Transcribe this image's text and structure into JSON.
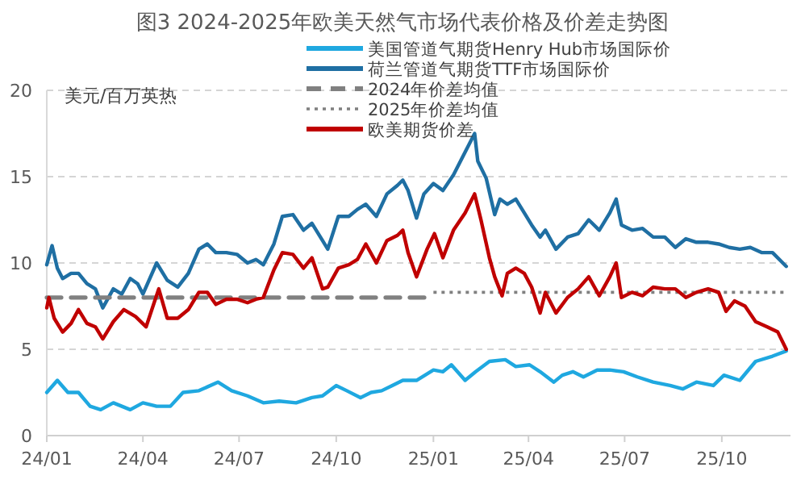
{
  "chart_data": {
    "type": "line",
    "title": "图3  2024-2025年欧美天然气市场代表价格及价差走势图",
    "ylabel": "美元/百万英热",
    "xlim": [
      "2024-01-01",
      "2025-12-05"
    ],
    "xticks": [
      {
        "value": "2024-01-01",
        "label": "24/01"
      },
      {
        "value": "2024-04-01",
        "label": "24/04"
      },
      {
        "value": "2024-07-01",
        "label": "24/07"
      },
      {
        "value": "2024-10-01",
        "label": "24/10"
      },
      {
        "value": "2025-01-01",
        "label": "25/01"
      },
      {
        "value": "2025-04-01",
        "label": "25/04"
      },
      {
        "value": "2025-07-01",
        "label": "25/07"
      },
      {
        "value": "2025-10-01",
        "label": "25/10"
      }
    ],
    "ylim": [
      0,
      20
    ],
    "yticks": [
      0,
      5,
      10,
      15,
      20
    ],
    "grid": "y",
    "legend": "top",
    "series": [
      {
        "name": "美国管道气期货Henry Hub市场国际价",
        "color": "#1fa8e0",
        "line_style": "solid",
        "x": [
          "2024-01-01",
          "2024-01-11",
          "2024-01-21",
          "2024-01-31",
          "2024-02-11",
          "2024-02-21",
          "2024-03-04",
          "2024-03-20",
          "2024-04-01",
          "2024-04-14",
          "2024-04-27",
          "2024-05-09",
          "2024-05-24",
          "2024-06-11",
          "2024-06-24",
          "2024-07-09",
          "2024-07-24",
          "2024-08-08",
          "2024-08-24",
          "2024-09-08",
          "2024-09-18",
          "2024-10-01",
          "2024-10-11",
          "2024-10-24",
          "2024-11-03",
          "2024-11-13",
          "2024-11-23",
          "2024-12-03",
          "2024-12-16",
          "2025-01-01",
          "2025-01-10",
          "2025-01-18",
          "2025-01-31",
          "2025-02-10",
          "2025-02-23",
          "2025-03-10",
          "2025-03-20",
          "2025-04-02",
          "2025-04-12",
          "2025-04-25",
          "2025-05-03",
          "2025-05-13",
          "2025-05-23",
          "2025-06-05",
          "2025-06-17",
          "2025-06-30",
          "2025-07-13",
          "2025-07-28",
          "2025-08-13",
          "2025-08-25",
          "2025-09-07",
          "2025-09-23",
          "2025-10-03",
          "2025-10-18",
          "2025-11-02",
          "2025-11-18",
          "2025-12-01"
        ],
        "values": [
          2.5,
          3.2,
          2.5,
          2.5,
          1.7,
          1.5,
          1.9,
          1.5,
          1.9,
          1.7,
          1.7,
          2.5,
          2.6,
          3.1,
          2.6,
          2.3,
          1.9,
          2.0,
          1.9,
          2.2,
          2.3,
          2.9,
          2.6,
          2.2,
          2.5,
          2.6,
          2.9,
          3.2,
          3.2,
          3.8,
          3.7,
          4.1,
          3.2,
          3.7,
          4.3,
          4.4,
          4.0,
          4.1,
          3.7,
          3.1,
          3.5,
          3.7,
          3.4,
          3.8,
          3.8,
          3.7,
          3.4,
          3.1,
          2.9,
          2.7,
          3.1,
          2.9,
          3.5,
          3.2,
          4.3,
          4.6,
          4.9
        ]
      },
      {
        "name": "荷兰管道气期货TTF市场国际价",
        "color": "#1f6fa3",
        "line_style": "solid",
        "x": [
          "2024-01-01",
          "2024-01-06",
          "2024-01-11",
          "2024-01-16",
          "2024-01-24",
          "2024-01-31",
          "2024-02-08",
          "2024-02-16",
          "2024-02-23",
          "2024-03-04",
          "2024-03-12",
          "2024-03-20",
          "2024-03-27",
          "2024-04-01",
          "2024-04-14",
          "2024-04-24",
          "2024-05-04",
          "2024-05-14",
          "2024-05-24",
          "2024-06-01",
          "2024-06-09",
          "2024-06-19",
          "2024-06-29",
          "2024-07-09",
          "2024-07-17",
          "2024-07-24",
          "2024-08-03",
          "2024-08-11",
          "2024-08-21",
          "2024-08-31",
          "2024-09-08",
          "2024-09-18",
          "2024-09-23",
          "2024-10-03",
          "2024-10-13",
          "2024-10-21",
          "2024-10-29",
          "2024-11-08",
          "2024-11-18",
          "2024-11-28",
          "2024-12-03",
          "2024-12-08",
          "2024-12-16",
          "2024-12-23",
          "2025-01-01",
          "2025-01-10",
          "2025-01-20",
          "2025-02-09",
          "2025-02-12",
          "2025-02-20",
          "2025-02-28",
          "2025-03-05",
          "2025-03-12",
          "2025-03-20",
          "2025-03-28",
          "2025-04-04",
          "2025-04-12",
          "2025-04-17",
          "2025-04-27",
          "2025-05-08",
          "2025-05-18",
          "2025-05-28",
          "2025-06-07",
          "2025-06-17",
          "2025-06-23",
          "2025-06-28",
          "2025-07-08",
          "2025-07-18",
          "2025-07-28",
          "2025-08-08",
          "2025-08-18",
          "2025-08-28",
          "2025-09-07",
          "2025-09-18",
          "2025-09-28",
          "2025-10-08",
          "2025-10-18",
          "2025-10-28",
          "2025-11-08",
          "2025-11-18",
          "2025-12-01"
        ],
        "values": [
          9.9,
          11.0,
          9.7,
          9.1,
          9.4,
          9.4,
          8.8,
          8.5,
          7.4,
          8.5,
          8.2,
          9.1,
          8.8,
          8.2,
          10.0,
          9.0,
          8.6,
          9.4,
          10.8,
          11.1,
          10.6,
          10.6,
          10.5,
          10.0,
          10.2,
          9.9,
          11.1,
          12.7,
          12.8,
          11.9,
          12.3,
          11.3,
          10.8,
          12.7,
          12.7,
          13.1,
          13.4,
          12.7,
          14.0,
          14.5,
          14.8,
          14.2,
          12.6,
          14.0,
          14.6,
          14.2,
          15.1,
          17.5,
          15.9,
          14.9,
          12.8,
          13.7,
          13.4,
          13.7,
          12.9,
          12.2,
          11.5,
          11.9,
          10.8,
          11.5,
          11.7,
          12.5,
          11.9,
          12.9,
          13.7,
          12.2,
          11.9,
          12.0,
          11.5,
          11.5,
          10.9,
          11.4,
          11.2,
          11.2,
          11.1,
          10.9,
          10.8,
          10.9,
          10.6,
          10.6,
          9.8
        ]
      },
      {
        "name": "2024年价差均值",
        "color": "#808080",
        "line_style": "dashed",
        "x": [
          "2024-01-01",
          "2025-01-01"
        ],
        "values": [
          8.0,
          8.0
        ]
      },
      {
        "name": "2025年价差均值",
        "color": "#808080",
        "line_style": "dotted",
        "x": [
          "2025-01-01",
          "2025-12-01"
        ],
        "values": [
          8.3,
          8.3
        ]
      },
      {
        "name": "欧美期货价差",
        "color": "#c00000",
        "line_style": "solid",
        "x": [
          "2024-01-01",
          "2024-01-03",
          "2024-01-08",
          "2024-01-16",
          "2024-01-24",
          "2024-01-31",
          "2024-02-08",
          "2024-02-16",
          "2024-02-23",
          "2024-03-04",
          "2024-03-14",
          "2024-03-25",
          "2024-04-04",
          "2024-04-16",
          "2024-04-24",
          "2024-05-04",
          "2024-05-14",
          "2024-05-24",
          "2024-06-01",
          "2024-06-09",
          "2024-06-19",
          "2024-06-29",
          "2024-07-09",
          "2024-07-17",
          "2024-07-24",
          "2024-08-03",
          "2024-08-11",
          "2024-08-21",
          "2024-08-31",
          "2024-09-08",
          "2024-09-18",
          "2024-09-23",
          "2024-10-03",
          "2024-10-13",
          "2024-10-21",
          "2024-10-29",
          "2024-11-08",
          "2024-11-18",
          "2024-11-28",
          "2024-12-03",
          "2024-12-08",
          "2024-12-16",
          "2024-12-26",
          "2025-01-02",
          "2025-01-10",
          "2025-01-20",
          "2025-01-31",
          "2025-02-09",
          "2025-02-15",
          "2025-02-23",
          "2025-02-28",
          "2025-03-07",
          "2025-03-12",
          "2025-03-20",
          "2025-03-28",
          "2025-04-04",
          "2025-04-12",
          "2025-04-17",
          "2025-04-27",
          "2025-05-08",
          "2025-05-18",
          "2025-05-28",
          "2025-06-07",
          "2025-06-17",
          "2025-06-23",
          "2025-06-28",
          "2025-07-08",
          "2025-07-18",
          "2025-07-28",
          "2025-08-08",
          "2025-08-18",
          "2025-08-28",
          "2025-09-07",
          "2025-09-18",
          "2025-09-28",
          "2025-10-05",
          "2025-10-13",
          "2025-10-23",
          "2025-11-02",
          "2025-11-13",
          "2025-11-23",
          "2025-12-01"
        ],
        "values": [
          7.4,
          8.0,
          6.8,
          6.0,
          6.5,
          7.3,
          6.5,
          6.3,
          5.6,
          6.6,
          7.3,
          6.9,
          6.3,
          8.5,
          6.8,
          6.8,
          7.3,
          8.3,
          8.3,
          7.6,
          7.9,
          7.9,
          7.7,
          7.9,
          8.0,
          9.6,
          10.6,
          10.5,
          9.7,
          10.3,
          8.5,
          8.6,
          9.7,
          9.9,
          10.2,
          11.1,
          10.0,
          11.3,
          11.6,
          11.9,
          10.6,
          9.2,
          10.8,
          11.7,
          10.3,
          11.9,
          12.9,
          14.0,
          12.5,
          10.3,
          9.2,
          8.1,
          9.4,
          9.7,
          9.4,
          8.6,
          7.1,
          8.3,
          7.1,
          8.0,
          8.5,
          9.2,
          8.1,
          9.2,
          10.0,
          8.0,
          8.3,
          8.1,
          8.6,
          8.5,
          8.5,
          8.0,
          8.3,
          8.5,
          8.3,
          7.2,
          7.8,
          7.5,
          6.6,
          6.3,
          6.0,
          5.0
        ]
      }
    ]
  }
}
